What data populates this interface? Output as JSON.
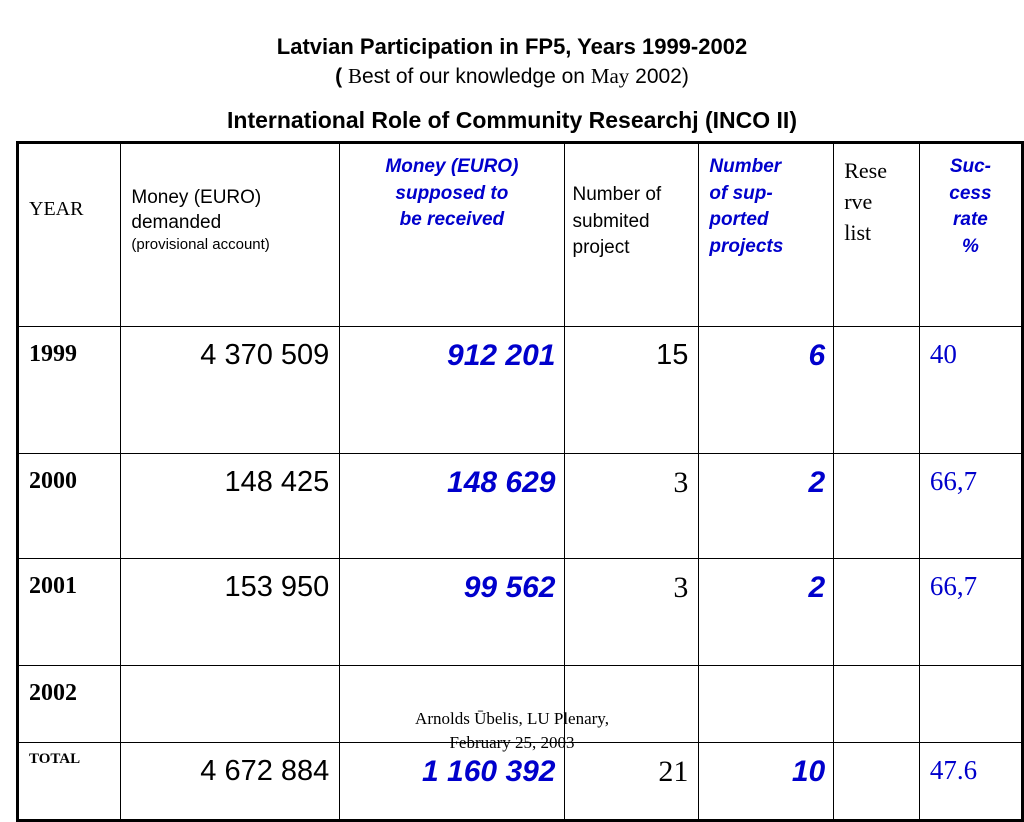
{
  "title": {
    "line1": "Latvian Participation in FP5, Years 1999-2002",
    "line2_open": "( ",
    "line2_B": "B",
    "line2_mid": "est of our knowledge on ",
    "line2_may": "May",
    "line2_year": "  2002)",
    "line3_main": "International Role of Community Researchj",
    "line3_paren": " (INCO II)"
  },
  "table": {
    "headers": {
      "year": "YEAR",
      "demanded_line1": "Money (EURO)",
      "demanded_line2": "demanded",
      "demanded_line3": "(provisional account)",
      "supposed_line1": "Money (EURO)",
      "supposed_line2": "supposed to",
      "supposed_line3": "be received",
      "submitted_line1": "Number of",
      "submitted_line2": "submited",
      "submitted_line3": "project",
      "supported_line1": "Number",
      "supported_line2": "of sup-",
      "supported_line3": "ported",
      "supported_line4": "projects",
      "reserve_line1": "Rese",
      "reserve_line2": "rve",
      "reserve_line3": "list",
      "rate_line1": "Suc-",
      "rate_line2": "cess",
      "rate_line3": "rate",
      "rate_line4": "%"
    },
    "rows": [
      {
        "year": "1999",
        "demanded": "4 370 509",
        "supposed": "912 201",
        "submitted": "15",
        "supported": "6",
        "reserve": "",
        "rate": "40"
      },
      {
        "year": "2000",
        "demanded": "148 425",
        "supposed": "148 629",
        "submitted": "3",
        "supported": "2",
        "reserve": "",
        "rate": "66,7"
      },
      {
        "year": "2001",
        "demanded": "153 950",
        "supposed": "99 562",
        "submitted": "3",
        "supported": "2",
        "reserve": "",
        "rate": "66,7"
      },
      {
        "year": "2002",
        "demanded": "",
        "supposed": "",
        "submitted": "",
        "supported": "",
        "reserve": "",
        "rate": ""
      },
      {
        "year": "TOTAL",
        "demanded": "4 672 884",
        "supposed": "1 160 392",
        "submitted": "21",
        "supported": "10",
        "reserve": "",
        "rate": "47.6"
      }
    ]
  },
  "footer": {
    "line1": "Arnolds Ūbelis,   LU Plenary,",
    "line2": "February 25, 2003"
  },
  "colors": {
    "accent_blue": "#0000cc",
    "text": "#000000",
    "background": "#ffffff"
  }
}
